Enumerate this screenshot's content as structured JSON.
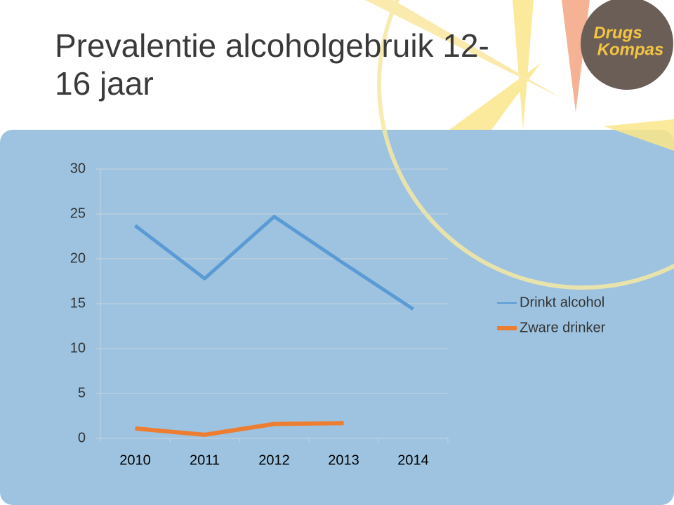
{
  "logo": [
    "Drugs",
    "Kompas"
  ],
  "chart_data": {
    "type": "line",
    "title": "Prevalentie alcoholgebruik 12-16 jaar",
    "categories": [
      "2010",
      "2011",
      "2012",
      "2013",
      "2014"
    ],
    "series": [
      {
        "name": "Drinkt alcohol",
        "color": "#5b9bd5",
        "values": [
          23.7,
          17.8,
          24.7,
          19.5,
          14.4
        ]
      },
      {
        "name": "Zware drinker",
        "color": "#ed7d31",
        "values": [
          1.1,
          0.4,
          1.6,
          1.7,
          null
        ]
      }
    ],
    "ylim": [
      0,
      30
    ],
    "yticks": [
      0,
      5,
      10,
      15,
      20,
      25,
      30
    ],
    "grid": true,
    "legend": "right"
  }
}
